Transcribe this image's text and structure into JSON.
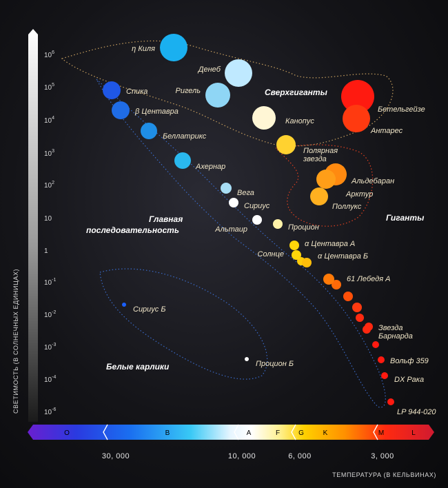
{
  "axis": {
    "y_title": "СВЕТИМОСТЬ (В СОЛНЕЧНЫХ ЕДИНИЦАХ)",
    "x_title": "ТЕМПЕРАТУРА (В КЕЛЬВИНАХ)",
    "y_ticks": [
      {
        "base": "10",
        "exp": "6"
      },
      {
        "base": "10",
        "exp": "5"
      },
      {
        "base": "10",
        "exp": "4"
      },
      {
        "base": "10",
        "exp": "3"
      },
      {
        "base": "10",
        "exp": "2"
      },
      {
        "base": "10",
        "exp": ""
      },
      {
        "base": "1",
        "exp": ""
      },
      {
        "base": "10",
        "exp": "-1"
      },
      {
        "base": "10",
        "exp": "-2"
      },
      {
        "base": "10",
        "exp": "-3"
      },
      {
        "base": "10",
        "exp": "-4"
      },
      {
        "base": "10",
        "exp": "-6"
      }
    ],
    "x_ticks": [
      "30, 000",
      "10, 000",
      "6, 000",
      "3, 000"
    ]
  },
  "spectral_classes": [
    "O",
    "B",
    "A",
    "F",
    "G",
    "K",
    "M",
    "L"
  ],
  "regions": {
    "supergiants": "Сверхгиганты",
    "giants": "Гиганты",
    "main_sequence_1": "Главная",
    "main_sequence_2": "последовательность",
    "white_dwarfs": "Белые карлики"
  },
  "stars": [
    {
      "label": "η Киля",
      "color": "#1ab0f0"
    },
    {
      "label": "Денеб",
      "color": "#bfe9ff"
    },
    {
      "label": "Ригель",
      "color": "#8fd6f5"
    },
    {
      "label": "Спика",
      "color": "#1f57e6"
    },
    {
      "label": "β Центавра",
      "color": "#1f6ce6"
    },
    {
      "label": "Беллатрикс",
      "color": "#1f8ee6"
    },
    {
      "label": "Ахернар",
      "color": "#2ab8ee"
    },
    {
      "label": "Вега",
      "color": "#a8def5"
    },
    {
      "label": "Сириус",
      "color": "#ffffff"
    },
    {
      "label": "Альтаир",
      "color": "#ffffff"
    },
    {
      "label": "Процион",
      "color": "#fff2a8"
    },
    {
      "label": "Канопус",
      "color": "#fff6d5"
    },
    {
      "label": "Полярная звезда",
      "color": "#ffd230"
    },
    {
      "label": "Бетельгейзе",
      "color": "#ff1a10"
    },
    {
      "label": "Антарес",
      "color": "#ff3a10"
    },
    {
      "label": "Альдебаран",
      "color": "#ff8a10"
    },
    {
      "label": "Арктур",
      "color": "#ff9e18"
    },
    {
      "label": "Поллукс",
      "color": "#ffb020"
    },
    {
      "label": "α Центавра А",
      "color": "#ffd60a"
    },
    {
      "label": "Солнце",
      "color": "#ffd60a"
    },
    {
      "label": "α Центавра Б",
      "color": "#ffbe0a"
    },
    {
      "label": "61 Лебедя А",
      "color": "#ff7a08"
    },
    {
      "label": "Звезда Барнарда",
      "color": "#ff2810"
    },
    {
      "label": "Вольф 359",
      "color": "#ff1a10"
    },
    {
      "label": "DX Рака",
      "color": "#ff1a10"
    },
    {
      "label": "LP 944-020",
      "color": "#ff1a10"
    },
    {
      "label": "Сириус Б",
      "color": "#1a60ff"
    },
    {
      "label": "Процион Б",
      "color": "#ffffff"
    }
  ]
}
